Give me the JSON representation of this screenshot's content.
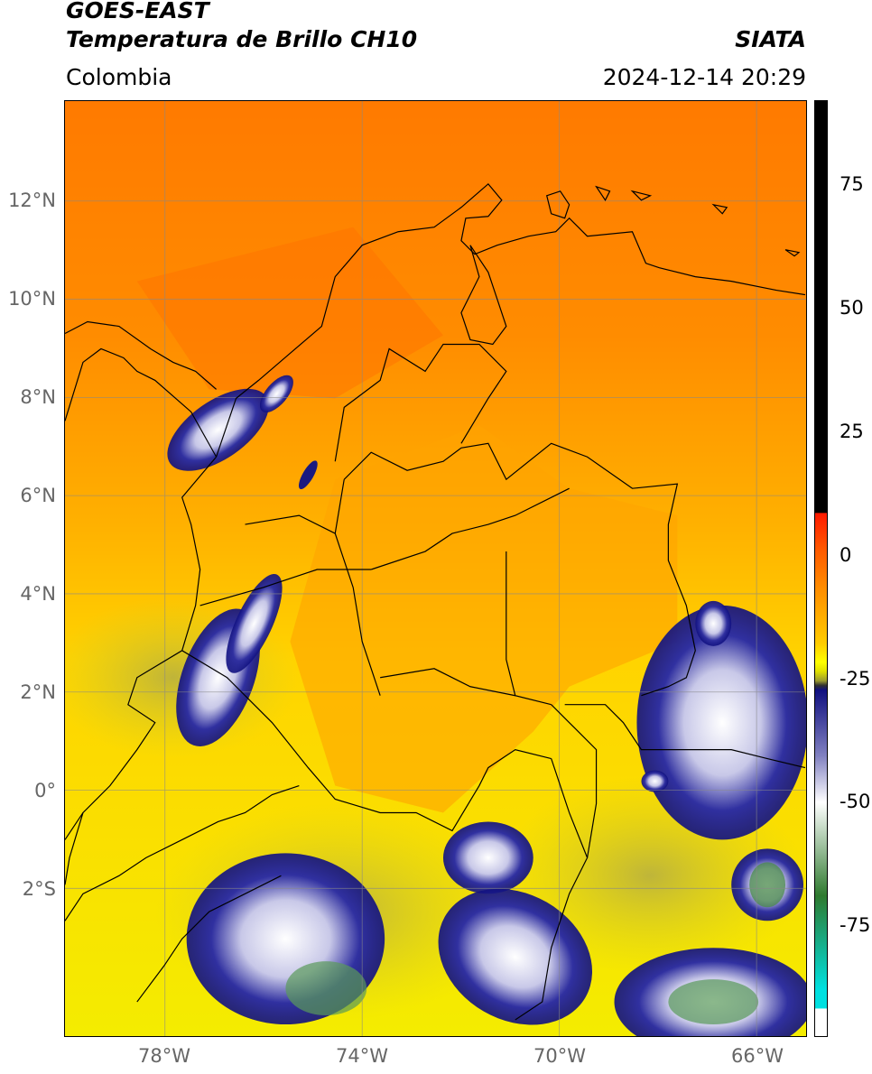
{
  "header": {
    "title_line1": "GOES-EAST",
    "title_line2": "Temperatura de Brillo CH10",
    "source": "SIATA",
    "region": "Colombia",
    "timestamp": "2024-12-14 20:29"
  },
  "map": {
    "lat_ticks": [
      "12°N",
      "10°N",
      "8°N",
      "6°N",
      "4°N",
      "2°N",
      "0°",
      "2°S"
    ],
    "lon_ticks": [
      "78°W",
      "74°W",
      "70°W",
      "66°W"
    ]
  },
  "colorbar": {
    "ticks": [
      "75",
      "50",
      "25",
      "0",
      "-25",
      "-50",
      "-75"
    ],
    "colors": {
      "black": "#000000",
      "red": "#ff1a00",
      "orange": "#ff8c00",
      "yellow": "#ffff00",
      "olive": "#9a9a30",
      "navy": "#101080",
      "white": "#ffffff",
      "green": "#2f7a2f",
      "cyan": "#00e0e0"
    }
  }
}
